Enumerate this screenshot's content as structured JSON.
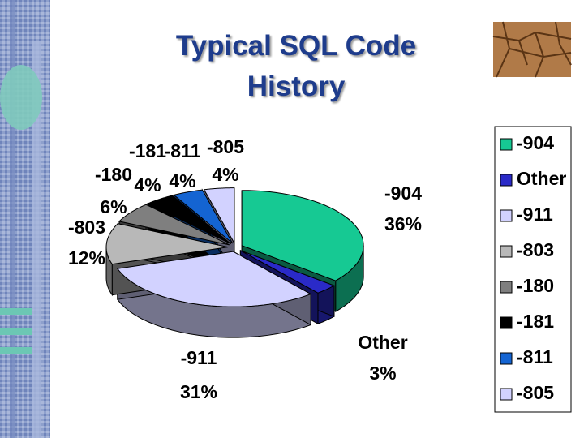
{
  "chart_data": {
    "type": "pie",
    "title": "Typical SQL Code History",
    "categories": [
      "-904",
      "Other",
      "-911",
      "-803",
      "-180",
      "-181",
      "-811",
      "-805"
    ],
    "values": [
      36,
      3,
      31,
      12,
      6,
      4,
      4,
      4
    ],
    "value_labels": [
      "36%",
      "3%",
      "31%",
      "12%",
      "6%",
      "4%",
      "4%",
      "4%"
    ],
    "colors": [
      "#16c993",
      "#2a2ac8",
      "#d2d2ff",
      "#b8b8b8",
      "#7f7f7f",
      "#000000",
      "#1464d2",
      "#d2d2ff"
    ],
    "legend": "right"
  }
}
